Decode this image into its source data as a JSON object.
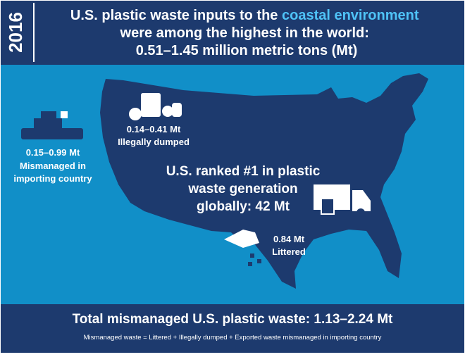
{
  "header": {
    "year": "2016",
    "title": [
      "U.S. plastic waste inputs to the",
      "coastal environment",
      "were among the highest in the world:",
      "0.51–1.45 million metric tons (Mt)"
    ]
  },
  "callouts": [
    {
      "value": "0.15–0.99 Mt",
      "label": [
        "Mismanaged in",
        "importing country"
      ]
    },
    {
      "value": "0.14–0.41 Mt",
      "label": [
        "Illegally dumped"
      ]
    },
    {
      "value": "0.84 Mt",
      "label": [
        "Littered"
      ]
    }
  ],
  "ranking": [
    "U.S. ranked #1 in plastic",
    "waste generation",
    "globally: 42 Mt"
  ],
  "footer": {
    "total": "Total mismanaged U.S. plastic waste: 1.13–2.24 Mt",
    "note": "Mismanaged waste = Littered + Illegally dumped + Exported waste mismanaged in importing country"
  }
}
